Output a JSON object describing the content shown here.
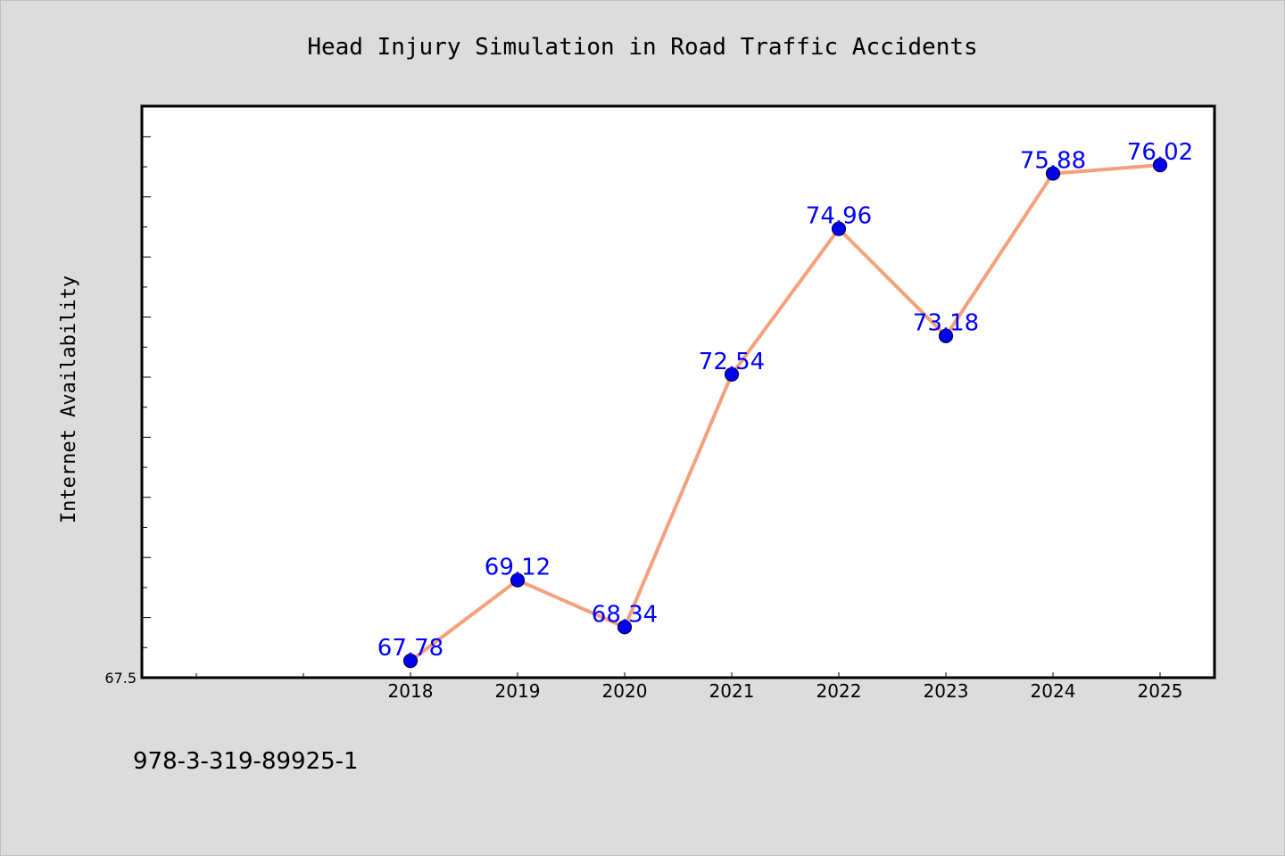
{
  "chart_data": {
    "type": "line",
    "title": "Head Injury Simulation in Road Traffic Accidents",
    "xlabel": "",
    "ylabel": "Internet Availability",
    "categories": [
      "2018",
      "2019",
      "2020",
      "2021",
      "2022",
      "2023",
      "2024",
      "2025"
    ],
    "series": [
      {
        "values": [
          67.78,
          69.12,
          68.34,
          72.54,
          74.96,
          73.18,
          75.88,
          76.02
        ],
        "data_labels": [
          "67.78",
          "69.12",
          "68.34",
          "72.54",
          "74.96",
          "73.18",
          "75.88",
          "76.02"
        ],
        "line_color": "#f4a07c",
        "marker_color": "#0000ee"
      }
    ],
    "ylim": [
      67.5,
      77.0
    ],
    "y_tick_labels": [
      "67.5"
    ],
    "grid": false,
    "legend": "none",
    "label_color": "#0000ff"
  },
  "footer": {
    "text": "978-3-319-89925-1"
  },
  "colors": {
    "background": "#dcdcdc",
    "plot_background": "#ffffff"
  }
}
